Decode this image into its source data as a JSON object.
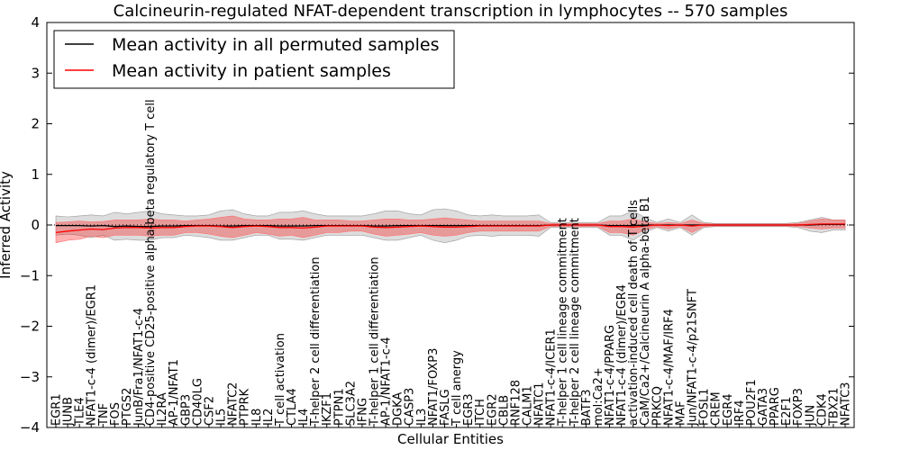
{
  "chart_data": {
    "type": "line",
    "title": "Calcineurin-regulated NFAT-dependent transcription in lymphocytes -- 570 samples",
    "xlabel": "Cellular Entities",
    "ylabel": "Inferred Activity",
    "ylim": [
      -4,
      4
    ],
    "yticks": [
      -4,
      -3,
      -2,
      -1,
      0,
      1,
      2,
      3,
      4
    ],
    "ytick_labels": [
      "−4",
      "−3",
      "−2",
      "−1",
      "0",
      "1",
      "2",
      "3",
      "4"
    ],
    "grid": false,
    "legend_position": "top-left",
    "reference_line": 0,
    "categories": [
      "EGR1",
      "JUNB",
      "TLE4",
      "NFAT1-c-4 (dimer)/EGR1",
      "TNF",
      "FOS",
      "PTGS2",
      "JunB/Fra1/NFAT1-c-4",
      "CD4-positive CD25-positive alpha-beta regulatory T cell",
      "IL2RA",
      "AP-1/NFAT1",
      "GBP3",
      "CD40LG",
      "CSF2",
      "IL5",
      "NFATC2",
      "PTPRK",
      "IL8",
      "IL2",
      "T cell activation",
      "CTLA4",
      "IL4",
      "T-helper 2 cell differentiation",
      "IKZF1",
      "PTPN1",
      "SLC3A2",
      "IFNG",
      "T-helper 1 cell differentiation",
      "AP-1/NFAT1-c-4",
      "DGKA",
      "CASP3",
      "IL3",
      "NFAT1/FOXP3",
      "FASLG",
      "T cell anergy",
      "EGR3",
      "ITCH",
      "EGR2",
      "CBLB",
      "RNF128",
      "CALM1",
      "NFATC1",
      "NFAT1-c-4/ICER1",
      "T-helper 1 cell lineage commitment",
      "T-helper 2 cell lineage commitment",
      "BATF3",
      "mol:Ca2+",
      "NFAT1-c-4/PPARG",
      "NFAT1-c-4 (dimer)/EGR4",
      "activation-induced cell death of T cells",
      "CaM/Ca2+/Calcineurin A alpha-beta B1",
      "PRKCQ",
      "NFAT1-c-4/MAF/IRF4",
      "MAF",
      "Jun/NFAT1-c-4/p21SNFT",
      "FOSL1",
      "CREM",
      "EGR4",
      "IRF4",
      "POU2F1",
      "GATA3",
      "PPARG",
      "E2F1",
      "FOXP3",
      "JUN",
      "CDK4",
      "TBX21",
      "NFATC3"
    ],
    "series": [
      {
        "name": "Mean activity in all permuted samples",
        "color": "#000000",
        "values": [
          -0.01,
          -0.01,
          -0.01,
          -0.02,
          -0.01,
          -0.03,
          -0.02,
          -0.03,
          -0.03,
          -0.02,
          -0.02,
          -0.01,
          -0.01,
          -0.01,
          -0.02,
          -0.02,
          -0.01,
          -0.01,
          -0.01,
          -0.02,
          -0.02,
          -0.02,
          -0.01,
          -0.01,
          -0.01,
          -0.01,
          -0.01,
          -0.02,
          -0.02,
          -0.01,
          -0.01,
          -0.01,
          -0.01,
          -0.01,
          -0.01,
          -0.01,
          -0.01,
          -0.01,
          -0.01,
          -0.01,
          -0.01,
          -0.01,
          0.0,
          0.0,
          0.0,
          0.0,
          0.0,
          -0.01,
          -0.01,
          -0.01,
          0.0,
          0.0,
          0.0,
          0.0,
          0.0,
          0.0,
          0.0,
          0.0,
          0.0,
          0.0,
          0.0,
          0.0,
          0.0,
          0.0,
          0.0,
          0.01,
          0.01,
          0.01
        ],
        "band_low": [
          -0.2,
          -0.18,
          -0.2,
          -0.25,
          -0.2,
          -0.3,
          -0.28,
          -0.3,
          -0.3,
          -0.25,
          -0.25,
          -0.2,
          -0.22,
          -0.25,
          -0.3,
          -0.3,
          -0.25,
          -0.2,
          -0.2,
          -0.28,
          -0.28,
          -0.3,
          -0.25,
          -0.2,
          -0.2,
          -0.2,
          -0.2,
          -0.25,
          -0.3,
          -0.3,
          -0.25,
          -0.2,
          -0.3,
          -0.35,
          -0.3,
          -0.22,
          -0.2,
          -0.22,
          -0.2,
          -0.2,
          -0.2,
          -0.22,
          -0.05,
          -0.05,
          -0.05,
          -0.05,
          -0.05,
          -0.2,
          -0.2,
          -0.3,
          -0.15,
          -0.05,
          -0.12,
          -0.05,
          -0.2,
          -0.05,
          -0.03,
          -0.03,
          -0.03,
          -0.03,
          -0.03,
          -0.03,
          -0.03,
          -0.05,
          -0.12,
          -0.15,
          -0.1,
          -0.1
        ],
        "band_high": [
          0.18,
          0.16,
          0.18,
          0.2,
          0.18,
          0.25,
          0.22,
          0.25,
          0.28,
          0.22,
          0.2,
          0.18,
          0.18,
          0.2,
          0.28,
          0.3,
          0.22,
          0.18,
          0.18,
          0.25,
          0.25,
          0.28,
          0.22,
          0.18,
          0.18,
          0.18,
          0.18,
          0.22,
          0.28,
          0.28,
          0.22,
          0.2,
          0.3,
          0.32,
          0.28,
          0.2,
          0.18,
          0.2,
          0.18,
          0.18,
          0.18,
          0.2,
          0.05,
          0.05,
          0.05,
          0.05,
          0.05,
          0.18,
          0.18,
          0.28,
          0.15,
          0.05,
          0.12,
          0.05,
          0.2,
          0.05,
          0.03,
          0.03,
          0.03,
          0.03,
          0.03,
          0.03,
          0.03,
          0.05,
          0.1,
          0.15,
          0.1,
          0.1
        ]
      },
      {
        "name": "Mean activity in patient samples",
        "color": "#ff0000",
        "values": [
          -0.15,
          -0.12,
          -0.1,
          -0.08,
          -0.09,
          -0.06,
          -0.05,
          -0.05,
          -0.06,
          -0.05,
          -0.05,
          -0.03,
          -0.02,
          -0.02,
          -0.03,
          -0.05,
          -0.03,
          -0.02,
          -0.03,
          -0.05,
          -0.05,
          -0.06,
          -0.04,
          -0.02,
          -0.02,
          -0.02,
          -0.02,
          -0.04,
          -0.05,
          -0.04,
          -0.03,
          -0.02,
          -0.03,
          -0.04,
          -0.04,
          -0.03,
          -0.02,
          -0.02,
          -0.02,
          -0.02,
          -0.02,
          -0.02,
          0.0,
          0.0,
          0.0,
          0.0,
          0.0,
          -0.03,
          -0.03,
          -0.04,
          -0.02,
          0.0,
          -0.01,
          0.0,
          -0.02,
          0.0,
          0.0,
          0.0,
          0.0,
          0.0,
          0.0,
          0.0,
          0.0,
          0.0,
          0.01,
          0.02,
          0.02,
          0.02
        ],
        "band_low": [
          -0.35,
          -0.3,
          -0.28,
          -0.22,
          -0.25,
          -0.2,
          -0.2,
          -0.2,
          -0.22,
          -0.2,
          -0.2,
          -0.15,
          -0.15,
          -0.18,
          -0.22,
          -0.25,
          -0.2,
          -0.15,
          -0.18,
          -0.22,
          -0.2,
          -0.25,
          -0.2,
          -0.15,
          -0.15,
          -0.12,
          -0.12,
          -0.18,
          -0.22,
          -0.2,
          -0.18,
          -0.15,
          -0.2,
          -0.22,
          -0.2,
          -0.15,
          -0.12,
          -0.12,
          -0.12,
          -0.12,
          -0.12,
          -0.12,
          -0.03,
          -0.03,
          -0.03,
          -0.03,
          -0.03,
          -0.15,
          -0.15,
          -0.2,
          -0.1,
          -0.03,
          -0.08,
          -0.03,
          -0.15,
          -0.03,
          -0.02,
          -0.02,
          -0.02,
          -0.02,
          -0.02,
          -0.02,
          -0.02,
          -0.03,
          -0.06,
          -0.08,
          -0.06,
          -0.06
        ],
        "band_high": [
          0.05,
          0.06,
          0.08,
          0.06,
          0.07,
          0.1,
          0.1,
          0.1,
          0.12,
          0.1,
          0.1,
          0.08,
          0.1,
          0.12,
          0.15,
          0.18,
          0.12,
          0.1,
          0.1,
          0.12,
          0.12,
          0.15,
          0.1,
          0.1,
          0.1,
          0.08,
          0.08,
          0.1,
          0.12,
          0.12,
          0.1,
          0.1,
          0.12,
          0.14,
          0.12,
          0.1,
          0.08,
          0.08,
          0.08,
          0.08,
          0.08,
          0.08,
          0.03,
          0.03,
          0.03,
          0.03,
          0.03,
          0.08,
          0.08,
          0.12,
          0.06,
          0.03,
          0.05,
          0.03,
          0.1,
          0.03,
          0.02,
          0.02,
          0.02,
          0.02,
          0.02,
          0.02,
          0.02,
          0.03,
          0.08,
          0.12,
          0.1,
          0.1
        ]
      }
    ]
  }
}
